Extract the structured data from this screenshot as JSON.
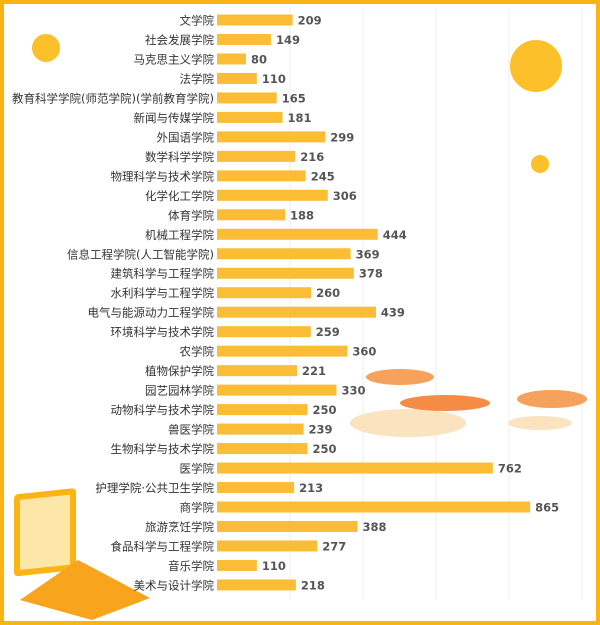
{
  "chart_data": {
    "type": "hbar",
    "categories": [
      "文学院",
      "社会发展学院",
      "马克思主义学院",
      "法学院",
      "教育科学学院(师范学院)(学前教育学院)",
      "新闻与传媒学院",
      "外国语学院",
      "数学科学学院",
      "物理科学与技术学院",
      "化学化工学院",
      "体育学院",
      "机械工程学院",
      "信息工程学院(人工智能学院)",
      "建筑科学与工程学院",
      "水利科学与工程学院",
      "电气与能源动力工程学院",
      "环境科学与技术学院",
      "农学院",
      "植物保护学院",
      "园艺园林学院",
      "动物科学与技术学院",
      "兽医学院",
      "生物科学与技术学院",
      "医学院",
      "护理学院·公共卫生学院",
      "商学院",
      "旅游烹饪学院",
      "食品科学与工程学院",
      "音乐学院",
      "美术与设计学院"
    ],
    "values": [
      209,
      149,
      80,
      110,
      165,
      181,
      299,
      216,
      245,
      306,
      188,
      444,
      369,
      378,
      260,
      439,
      259,
      360,
      221,
      330,
      250,
      239,
      250,
      762,
      213,
      865,
      388,
      277,
      110,
      218
    ],
    "color": "#fbbd35",
    "xlim": [
      0,
      1000
    ]
  }
}
